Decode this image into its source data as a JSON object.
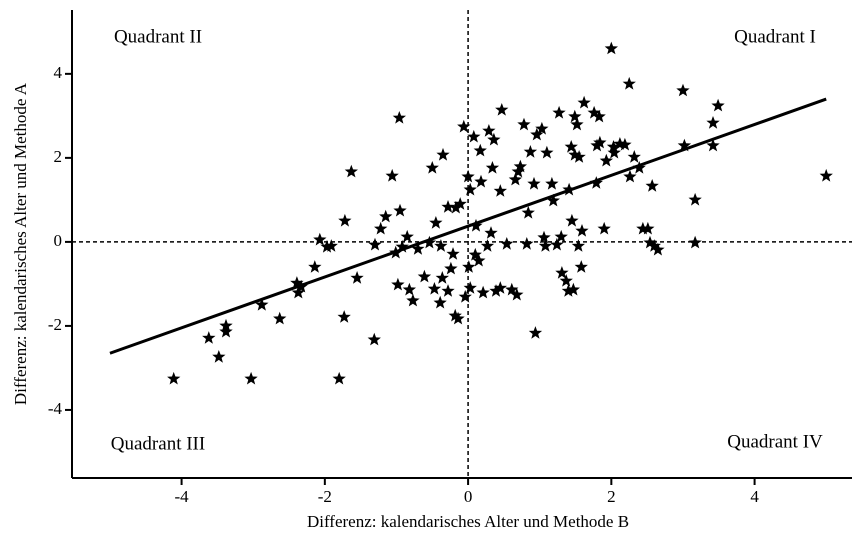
{
  "chart_data": {
    "type": "scatter",
    "xlabel": "Differenz: kalendarisches Alter und Methode B",
    "ylabel": "Differenz: kalendarisches Alter und Methode A",
    "annotations": [
      "Quadrant I",
      "Quadrant II",
      "Quadrant III",
      "Quadrant IV"
    ],
    "xlim": [
      -5.53,
      5.36
    ],
    "ylim": [
      -5.62,
      5.52
    ],
    "xticks": [
      -4,
      -2,
      0,
      2,
      4
    ],
    "yticks": [
      -4,
      -2,
      0,
      2,
      4
    ],
    "color": "#000000",
    "x": [
      -4.11,
      -3.48,
      -3.62,
      -3.38,
      -3.38,
      -3.03,
      -2.88,
      -2.63,
      -2.39,
      -2.37,
      -2.33,
      -2.14,
      -2.07,
      -1.97,
      -1.91,
      -1.8,
      -1.73,
      -1.72,
      -1.63,
      -1.55,
      -1.31,
      -1.3,
      -1.22,
      -1.15,
      -1.06,
      -1.01,
      -0.98,
      -0.96,
      -0.95,
      -0.92,
      -0.85,
      -0.82,
      -0.77,
      -0.7,
      -0.61,
      -0.54,
      -0.5,
      -0.47,
      -0.45,
      -0.39,
      -0.38,
      -0.36,
      -0.35,
      -0.28,
      -0.28,
      -0.24,
      -0.21,
      -0.18,
      -0.17,
      -0.14,
      -0.11,
      -0.06,
      -0.04,
      0,
      0.01,
      0.03,
      0.03,
      0.08,
      0.1,
      0.11,
      0.15,
      0.17,
      0.18,
      0.21,
      0.27,
      0.29,
      0.32,
      0.34,
      0.36,
      0.39,
      0.45,
      0.45,
      0.47,
      0.54,
      0.61,
      0.66,
      0.68,
      0.7,
      0.73,
      0.78,
      0.82,
      0.84,
      0.87,
      0.92,
      0.94,
      0.96,
      1.03,
      1.06,
      1.08,
      1.1,
      1.17,
      1.19,
      1.24,
      1.27,
      1.3,
      1.31,
      1.37,
      1.4,
      1.41,
      1.44,
      1.45,
      1.47,
      1.49,
      1.49,
      1.52,
      1.54,
      1.55,
      1.58,
      1.59,
      1.62,
      1.76,
      1.79,
      1.8,
      1.83,
      1.84,
      1.9,
      1.93,
      2.0,
      2.03,
      2.04,
      2.12,
      2.19,
      2.25,
      2.26,
      2.32,
      2.39,
      2.44,
      2.51,
      2.54,
      2.57,
      2.6,
      2.65,
      3.0,
      3.02,
      3.17,
      3.17,
      3.42,
      3.42,
      3.49,
      5.0
    ],
    "y": [
      -3.26,
      -2.74,
      -2.29,
      -2.0,
      -2.14,
      -3.26,
      -1.5,
      -1.83,
      -0.98,
      -1.21,
      -1.07,
      -0.6,
      0.05,
      -0.12,
      -0.1,
      -3.26,
      -1.79,
      0.5,
      1.67,
      -0.86,
      -2.33,
      -0.07,
      0.31,
      0.6,
      1.57,
      -0.26,
      -1.02,
      2.95,
      0.74,
      -0.12,
      0.12,
      -1.14,
      -1.4,
      -0.17,
      -0.83,
      -0.02,
      1.76,
      -1.12,
      0.45,
      -1.45,
      -0.1,
      -0.86,
      2.07,
      -1.17,
      0.83,
      -0.64,
      -0.29,
      -1.76,
      0.81,
      -1.83,
      0.9,
      2.74,
      -1.31,
      1.55,
      -0.6,
      1.24,
      -1.1,
      2.5,
      -0.31,
      0.38,
      -0.45,
      2.17,
      1.43,
      -1.21,
      -0.1,
      2.64,
      0.21,
      1.76,
      2.43,
      -1.17,
      1.21,
      -1.1,
      3.14,
      -0.05,
      -1.14,
      1.48,
      -1.26,
      1.67,
      1.79,
      2.79,
      -0.05,
      0.69,
      2.14,
      1.38,
      -2.17,
      2.55,
      2.69,
      0.1,
      -0.1,
      2.12,
      1.38,
      0.98,
      -0.07,
      3.07,
      0.12,
      -0.74,
      -0.93,
      -1.17,
      1.24,
      2.26,
      0.5,
      -1.14,
      2.98,
      2.07,
      2.79,
      -0.1,
      2.02,
      -0.6,
      0.26,
      3.31,
      3.07,
      1.4,
      2.29,
      2.98,
      2.36,
      0.31,
      1.93,
      4.6,
      2.26,
      2.12,
      2.33,
      2.31,
      3.76,
      1.55,
      2.02,
      1.76,
      0.31,
      0.31,
      -0.02,
      1.33,
      -0.1,
      -0.19,
      3.6,
      2.29,
      1.0,
      -0.02,
      2.29,
      2.83,
      3.24,
      1.57
    ],
    "regression": {
      "x": [
        -5,
        5
      ],
      "y": [
        -2.65,
        3.4
      ]
    }
  }
}
